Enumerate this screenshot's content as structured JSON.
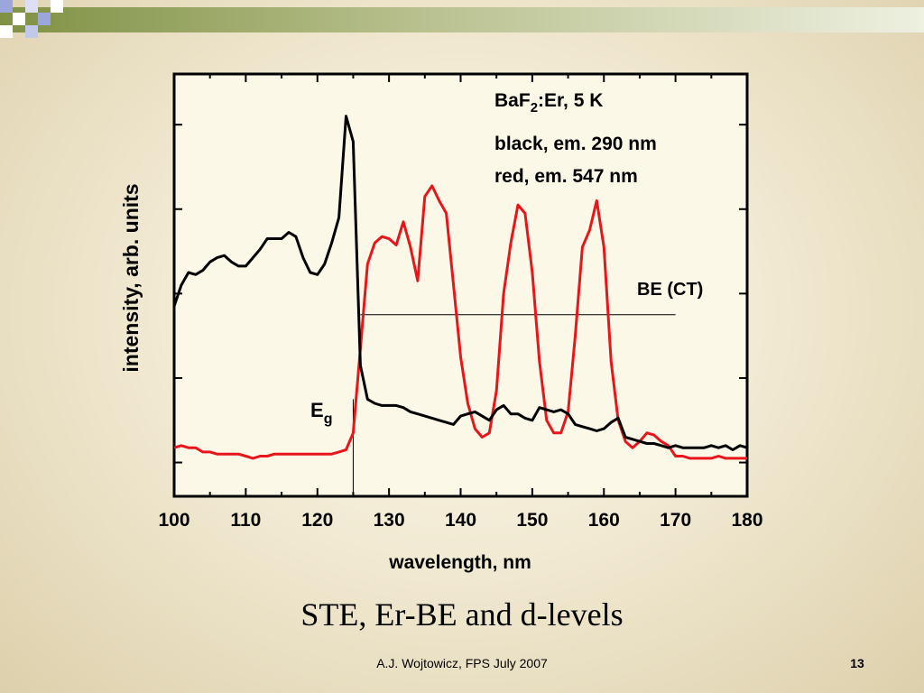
{
  "slide": {
    "title": "STE, Er-BE and d-levels",
    "footer": "A.J. Wojtowicz, FPS July 2007",
    "page_number": "13",
    "colors": {
      "black_series": "#000000",
      "red_series": "#e8151b",
      "band_green": "#8f9e4e",
      "band_blue": "#9aa6dc"
    }
  },
  "chart_data": {
    "type": "line",
    "xlabel": "wavelength, nm",
    "ylabel": "intensity, arb. units",
    "xlim": [
      100,
      180
    ],
    "ylim": [
      0,
      1
    ],
    "xticks": [
      "100",
      "110",
      "120",
      "130",
      "140",
      "150",
      "160",
      "170",
      "180"
    ],
    "yticks_labeled": false,
    "legend_lines": [
      "BaF2:Er, 5 K",
      "black, em. 290 nm",
      "red, em. 547 nm"
    ],
    "legend_main": "BaF",
    "legend_sub": "2",
    "legend_rest": ":Er, 5 K",
    "legend_line2": "black, em. 290 nm",
    "legend_line3": "red, em. 547 nm",
    "annotations": {
      "be_label": "BE (CT)",
      "be_line": {
        "x_start": 126,
        "x_end": 170,
        "y": 0.43
      },
      "eg_label": "E",
      "eg_sub": "g",
      "eg_line": {
        "x": 125,
        "y_bottom": 0.0,
        "y_top": 0.23
      }
    },
    "series": [
      {
        "name": "black, em. 290 nm",
        "color": "#000000",
        "x": [
          100,
          101,
          102,
          103,
          104,
          105,
          106,
          107,
          108,
          109,
          110,
          111,
          112,
          113,
          114,
          115,
          116,
          117,
          118,
          119,
          120,
          121,
          122,
          123,
          124,
          125,
          126,
          127,
          128,
          129,
          130,
          131,
          132,
          133,
          134,
          135,
          136,
          137,
          138,
          139,
          140,
          141,
          142,
          143,
          144,
          145,
          146,
          147,
          148,
          149,
          150,
          151,
          152,
          153,
          154,
          155,
          156,
          157,
          158,
          159,
          160,
          161,
          162,
          163,
          164,
          165,
          166,
          167,
          168,
          169,
          170,
          171,
          172,
          173,
          174,
          175,
          176,
          177,
          178,
          179,
          180
        ],
        "y": [
          0.45,
          0.5,
          0.53,
          0.525,
          0.535,
          0.555,
          0.565,
          0.57,
          0.555,
          0.545,
          0.545,
          0.565,
          0.585,
          0.61,
          0.61,
          0.61,
          0.625,
          0.615,
          0.565,
          0.53,
          0.525,
          0.55,
          0.6,
          0.66,
          0.9,
          0.84,
          0.31,
          0.23,
          0.22,
          0.215,
          0.215,
          0.215,
          0.21,
          0.2,
          0.195,
          0.19,
          0.185,
          0.18,
          0.175,
          0.17,
          0.19,
          0.195,
          0.2,
          0.19,
          0.18,
          0.205,
          0.215,
          0.195,
          0.195,
          0.185,
          0.18,
          0.21,
          0.205,
          0.2,
          0.205,
          0.195,
          0.17,
          0.165,
          0.16,
          0.155,
          0.16,
          0.175,
          0.185,
          0.14,
          0.135,
          0.13,
          0.125,
          0.125,
          0.12,
          0.115,
          0.12,
          0.115,
          0.115,
          0.115,
          0.115,
          0.12,
          0.115,
          0.12,
          0.11,
          0.12,
          0.115
        ]
      },
      {
        "name": "red, em. 547 nm",
        "color": "#e8151b",
        "x": [
          100,
          101,
          102,
          103,
          104,
          105,
          106,
          107,
          108,
          109,
          110,
          111,
          112,
          113,
          114,
          115,
          116,
          117,
          118,
          119,
          120,
          121,
          122,
          123,
          124,
          125,
          126,
          127,
          128,
          129,
          130,
          131,
          132,
          133,
          134,
          135,
          136,
          137,
          138,
          139,
          140,
          141,
          142,
          143,
          144,
          145,
          146,
          147,
          148,
          149,
          150,
          151,
          152,
          153,
          154,
          155,
          156,
          157,
          158,
          159,
          160,
          161,
          162,
          163,
          164,
          165,
          166,
          167,
          168,
          169,
          170,
          171,
          172,
          173,
          174,
          175,
          176,
          177,
          178,
          179,
          180
        ],
        "y": [
          0.115,
          0.12,
          0.115,
          0.115,
          0.105,
          0.105,
          0.1,
          0.1,
          0.1,
          0.1,
          0.095,
          0.09,
          0.095,
          0.095,
          0.1,
          0.1,
          0.1,
          0.1,
          0.1,
          0.1,
          0.1,
          0.1,
          0.1,
          0.105,
          0.11,
          0.15,
          0.35,
          0.55,
          0.6,
          0.615,
          0.61,
          0.595,
          0.65,
          0.59,
          0.51,
          0.71,
          0.735,
          0.7,
          0.67,
          0.5,
          0.33,
          0.22,
          0.16,
          0.14,
          0.15,
          0.25,
          0.48,
          0.6,
          0.69,
          0.67,
          0.53,
          0.32,
          0.18,
          0.15,
          0.15,
          0.2,
          0.38,
          0.59,
          0.63,
          0.7,
          0.59,
          0.32,
          0.18,
          0.13,
          0.115,
          0.13,
          0.15,
          0.145,
          0.13,
          0.12,
          0.095,
          0.095,
          0.09,
          0.09,
          0.09,
          0.09,
          0.095,
          0.09,
          0.09,
          0.09,
          0.09
        ]
      }
    ]
  }
}
